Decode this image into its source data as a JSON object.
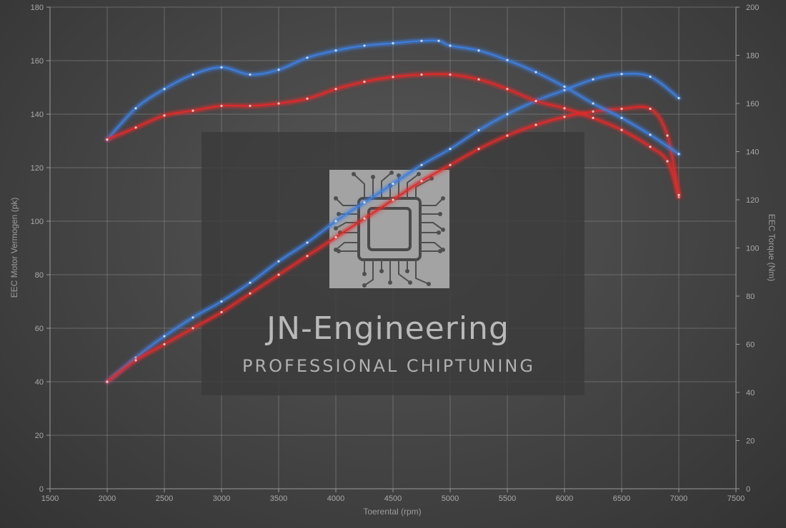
{
  "chart_data": {
    "type": "line",
    "xlabel": "Toerental (rpm)",
    "ylabel_left": "EEC Motor Vermogen (pk)",
    "ylabel_right": "EEC Torque (Nm)",
    "xlim": [
      1500,
      7500
    ],
    "ylim_left": [
      0,
      180
    ],
    "ylim_right": [
      0,
      200
    ],
    "x_ticks": [
      1500,
      2000,
      2500,
      3000,
      3500,
      4000,
      4500,
      5000,
      5500,
      6000,
      6500,
      7000,
      7500
    ],
    "y_left_ticks": [
      0,
      20,
      40,
      60,
      80,
      100,
      120,
      140,
      160,
      180
    ],
    "y_right_ticks": [
      0,
      20,
      40,
      60,
      80,
      100,
      120,
      140,
      160,
      180,
      200
    ],
    "grid": true,
    "series": [
      {
        "color": "#3d7fe0",
        "axis": "left",
        "x": [
          2000,
          2250,
          2500,
          2750,
          3000,
          3250,
          3500,
          3750,
          4000,
          4250,
          4500,
          4750,
          5000,
          5250,
          5500,
          5750,
          6000,
          6250,
          6500,
          6750,
          7000
        ],
        "values": [
          40,
          49,
          57,
          64,
          70,
          77,
          85,
          92,
          100,
          107,
          114,
          121,
          127,
          134,
          140,
          145,
          149,
          153,
          155,
          154,
          146
        ]
      },
      {
        "color": "#e02a2a",
        "axis": "left",
        "x": [
          2000,
          2250,
          2500,
          2750,
          3000,
          3250,
          3500,
          3750,
          4000,
          4250,
          4500,
          4750,
          5000,
          5250,
          5500,
          5750,
          6000,
          6250,
          6500,
          6750,
          6900,
          7000
        ],
        "values": [
          40,
          48,
          54,
          60,
          66,
          73,
          80,
          87,
          94,
          101,
          108,
          115,
          121,
          127,
          132,
          136,
          139,
          141,
          142,
          142,
          132,
          109
        ]
      },
      {
        "color": "#3d7fe0",
        "axis": "right",
        "x": [
          2000,
          2250,
          2500,
          2750,
          3000,
          3250,
          3500,
          3750,
          4000,
          4250,
          4500,
          4750,
          4900,
          5000,
          5250,
          5500,
          5750,
          6000,
          6250,
          6500,
          6750,
          7000
        ],
        "values": [
          145,
          158,
          166,
          172,
          175,
          172,
          174,
          179,
          182,
          184,
          185,
          186,
          186,
          184,
          182,
          178,
          173,
          167,
          160,
          154,
          147,
          139
        ]
      },
      {
        "color": "#e02a2a",
        "axis": "right",
        "x": [
          2000,
          2250,
          2500,
          2750,
          3000,
          3250,
          3500,
          3750,
          4000,
          4250,
          4500,
          4750,
          5000,
          5250,
          5500,
          5750,
          6000,
          6250,
          6500,
          6750,
          6900,
          7000
        ],
        "values": [
          145,
          150,
          155,
          157,
          159,
          159,
          160,
          162,
          166,
          169,
          171,
          172,
          172,
          170,
          166,
          161,
          158,
          154,
          149,
          142,
          136,
          122
        ]
      }
    ]
  },
  "watermark": {
    "title": "JN-Engineering",
    "subtitle": "PROFESSIONAL CHIPTUNING"
  }
}
